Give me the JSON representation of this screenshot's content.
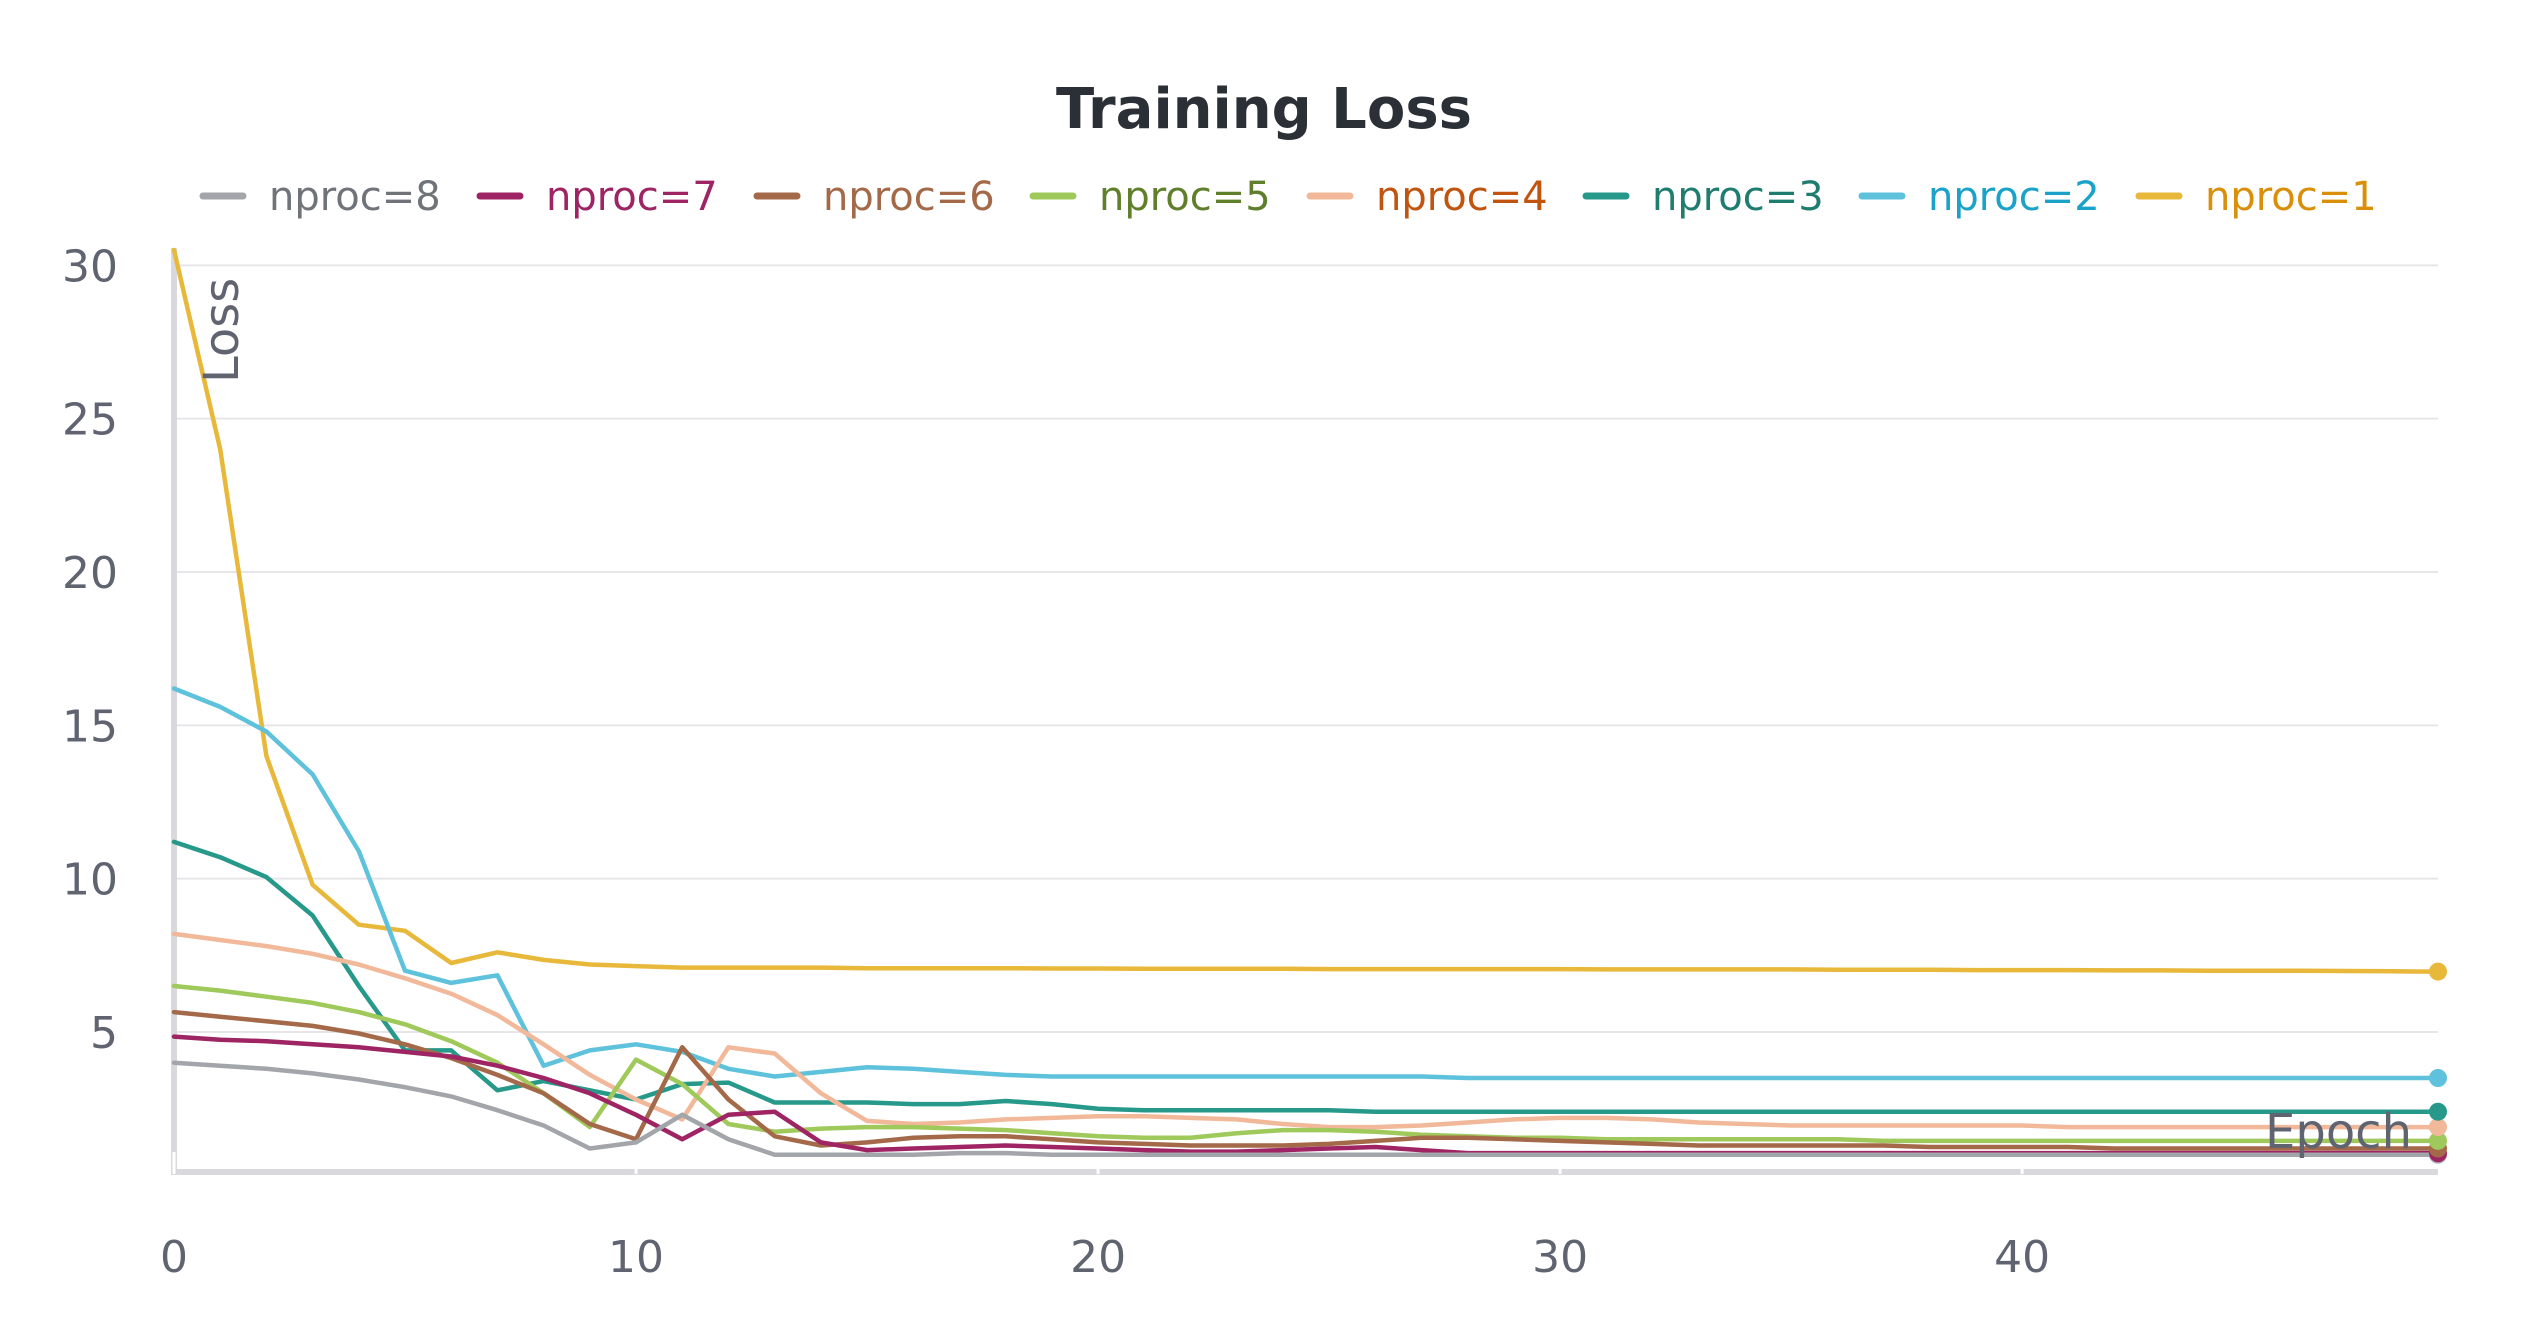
{
  "chart_data": {
    "type": "line",
    "title": "Training Loss",
    "xlabel": "Epoch",
    "ylabel": "Loss",
    "xlim": [
      0,
      49
    ],
    "ylim": [
      0.5,
      30.5
    ],
    "x_ticks": [
      0,
      10,
      20,
      30,
      40
    ],
    "y_ticks": [
      5,
      10,
      15,
      20,
      25,
      30
    ],
    "grid": true,
    "legend_position": "top",
    "series": [
      {
        "name": "nproc=8",
        "color": "#a2a5aa",
        "text_color": "#6f737a",
        "values": [
          4.0,
          3.9,
          3.8,
          3.65,
          3.45,
          3.2,
          2.9,
          2.45,
          1.95,
          1.2,
          1.4,
          2.3,
          1.5,
          1.0,
          1.0,
          1.0,
          1.0,
          1.05,
          1.05,
          1.0,
          1.0,
          1.0,
          1.0,
          1.0,
          1.0,
          1.0,
          1.0,
          1.0,
          1.0,
          1.0,
          1.0,
          1.0,
          1.0,
          1.0,
          1.0,
          1.0,
          1.0,
          1.0,
          1.0,
          1.0,
          1.0,
          1.0,
          1.0,
          1.0,
          1.0,
          1.0,
          1.0,
          1.0,
          1.0,
          1.0
        ]
      },
      {
        "name": "nproc=7",
        "color": "#9e2463",
        "text_color": "#9e2463",
        "values": [
          4.85,
          4.75,
          4.7,
          4.6,
          4.5,
          4.35,
          4.2,
          3.9,
          3.5,
          3.0,
          2.3,
          1.5,
          2.3,
          2.4,
          1.4,
          1.15,
          1.2,
          1.25,
          1.3,
          1.25,
          1.2,
          1.15,
          1.1,
          1.1,
          1.15,
          1.2,
          1.25,
          1.15,
          1.05,
          1.05,
          1.05,
          1.05,
          1.05,
          1.05,
          1.05,
          1.05,
          1.05,
          1.05,
          1.05,
          1.05,
          1.05,
          1.05,
          1.05,
          1.05,
          1.05,
          1.05,
          1.05,
          1.05,
          1.05,
          1.05
        ]
      },
      {
        "name": "nproc=6",
        "color": "#a46949",
        "text_color": "#a46949",
        "values": [
          5.65,
          5.5,
          5.35,
          5.2,
          4.95,
          4.6,
          4.15,
          3.6,
          3.0,
          2.0,
          1.5,
          4.5,
          2.8,
          1.6,
          1.3,
          1.4,
          1.55,
          1.6,
          1.6,
          1.5,
          1.4,
          1.35,
          1.3,
          1.3,
          1.3,
          1.35,
          1.45,
          1.55,
          1.55,
          1.5,
          1.45,
          1.4,
          1.35,
          1.3,
          1.3,
          1.3,
          1.3,
          1.3,
          1.25,
          1.25,
          1.25,
          1.25,
          1.2,
          1.2,
          1.2,
          1.2,
          1.2,
          1.2,
          1.2,
          1.2
        ]
      },
      {
        "name": "nproc=5",
        "color": "#a0c95b",
        "text_color": "#5f7f2a",
        "values": [
          6.5,
          6.35,
          6.15,
          5.95,
          5.65,
          5.25,
          4.7,
          4.0,
          3.0,
          1.9,
          4.1,
          3.3,
          2.0,
          1.75,
          1.85,
          1.9,
          1.9,
          1.85,
          1.8,
          1.7,
          1.6,
          1.55,
          1.55,
          1.7,
          1.8,
          1.8,
          1.75,
          1.65,
          1.6,
          1.55,
          1.55,
          1.5,
          1.5,
          1.5,
          1.5,
          1.5,
          1.5,
          1.45,
          1.45,
          1.45,
          1.45,
          1.45,
          1.45,
          1.45,
          1.45,
          1.45,
          1.45,
          1.45,
          1.45,
          1.45
        ]
      },
      {
        "name": "nproc=4",
        "color": "#f1b89a",
        "text_color": "#c1540f",
        "values": [
          8.2,
          8.0,
          7.8,
          7.55,
          7.2,
          6.75,
          6.25,
          5.55,
          4.6,
          3.6,
          2.8,
          2.15,
          4.5,
          4.3,
          3.0,
          2.1,
          2.0,
          2.05,
          2.15,
          2.2,
          2.25,
          2.25,
          2.2,
          2.15,
          2.0,
          1.9,
          1.9,
          1.95,
          2.05,
          2.15,
          2.2,
          2.2,
          2.15,
          2.05,
          2.0,
          1.95,
          1.95,
          1.95,
          1.95,
          1.95,
          1.95,
          1.9,
          1.9,
          1.9,
          1.9,
          1.9,
          1.9,
          1.9,
          1.9,
          1.9
        ]
      },
      {
        "name": "nproc=3",
        "color": "#27998a",
        "text_color": "#1f7d70",
        "values": [
          11.2,
          10.7,
          10.05,
          8.8,
          6.5,
          4.4,
          4.4,
          3.1,
          3.4,
          3.1,
          2.8,
          3.3,
          3.35,
          2.7,
          2.7,
          2.7,
          2.65,
          2.65,
          2.75,
          2.65,
          2.5,
          2.45,
          2.45,
          2.45,
          2.45,
          2.45,
          2.4,
          2.4,
          2.4,
          2.4,
          2.4,
          2.4,
          2.4,
          2.4,
          2.4,
          2.4,
          2.4,
          2.4,
          2.4,
          2.4,
          2.4,
          2.4,
          2.4,
          2.4,
          2.4,
          2.4,
          2.4,
          2.4,
          2.4,
          2.4
        ]
      },
      {
        "name": "nproc=2",
        "color": "#5fc2dc",
        "text_color": "#1aa2c9",
        "values": [
          16.2,
          15.6,
          14.8,
          13.4,
          10.9,
          7.0,
          6.6,
          6.85,
          3.9,
          4.4,
          4.6,
          4.35,
          3.8,
          3.55,
          3.7,
          3.85,
          3.8,
          3.7,
          3.6,
          3.55,
          3.55,
          3.55,
          3.55,
          3.55,
          3.55,
          3.55,
          3.55,
          3.55,
          3.5,
          3.5,
          3.5,
          3.5,
          3.5,
          3.5,
          3.5,
          3.5,
          3.5,
          3.5,
          3.5,
          3.5,
          3.5,
          3.5,
          3.5,
          3.5,
          3.5,
          3.5,
          3.5,
          3.5,
          3.5,
          3.5
        ]
      },
      {
        "name": "nproc=1",
        "color": "#e8b83b",
        "text_color": "#d98f0a",
        "values": [
          30.5,
          24.0,
          14.0,
          9.8,
          8.5,
          8.3,
          7.25,
          7.6,
          7.35,
          7.2,
          7.15,
          7.1,
          7.1,
          7.1,
          7.1,
          7.08,
          7.08,
          7.08,
          7.08,
          7.07,
          7.07,
          7.06,
          7.06,
          7.06,
          7.06,
          7.05,
          7.05,
          7.05,
          7.05,
          7.05,
          7.05,
          7.04,
          7.04,
          7.04,
          7.04,
          7.04,
          7.03,
          7.03,
          7.03,
          7.02,
          7.02,
          7.02,
          7.01,
          7.01,
          7.0,
          7.0,
          7.0,
          6.99,
          6.98,
          6.97
        ]
      }
    ]
  }
}
